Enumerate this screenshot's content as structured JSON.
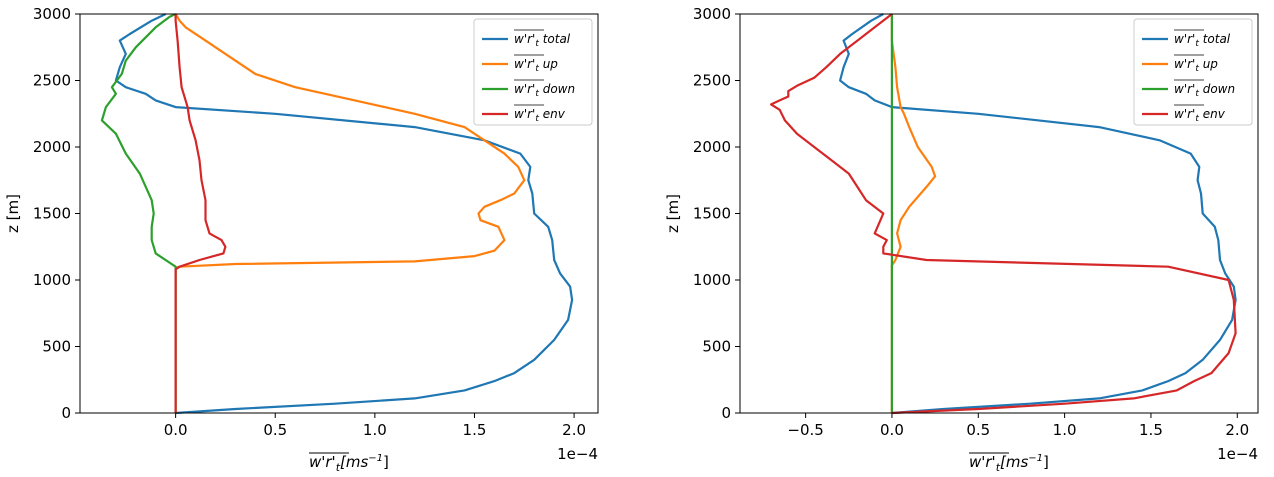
{
  "chart_data": [
    {
      "type": "line",
      "xlabel": "w'r'_t[ms^-1]",
      "ylabel": "z [m]",
      "offset_text": "1e−4",
      "xlim": [
        -0.48,
        2.12
      ],
      "ylim": [
        0,
        3000
      ],
      "xticks": [
        0.0,
        0.5,
        1.0,
        1.5,
        2.0
      ],
      "xtick_labels": [
        "0.0",
        "0.5",
        "1.0",
        "1.5",
        "2.0"
      ],
      "yticks": [
        0,
        500,
        1000,
        1500,
        2000,
        2500,
        3000
      ],
      "ytick_labels": [
        "0",
        "500",
        "1000",
        "1500",
        "2000",
        "2500",
        "3000"
      ],
      "legend_position": "upper right",
      "series": [
        {
          "name": "total",
          "color": "#1f77b4",
          "x": [
            0.0,
            0.3,
            0.8,
            1.2,
            1.45,
            1.6,
            1.7,
            1.8,
            1.9,
            1.97,
            1.99,
            1.98,
            1.93,
            1.9,
            1.89,
            1.87,
            1.8,
            1.79,
            1.77,
            1.78,
            1.73,
            1.55,
            1.2,
            0.5,
            0.0,
            -0.1,
            -0.15,
            -0.25,
            -0.3,
            -0.28,
            -0.25,
            -0.28,
            -0.23,
            -0.12,
            -0.05
          ],
          "y": [
            0,
            30,
            70,
            110,
            170,
            240,
            300,
            400,
            550,
            700,
            850,
            950,
            1050,
            1150,
            1300,
            1400,
            1500,
            1650,
            1750,
            1850,
            1950,
            2050,
            2150,
            2250,
            2300,
            2350,
            2400,
            2450,
            2500,
            2600,
            2700,
            2800,
            2850,
            2950,
            3000
          ]
        },
        {
          "name": "up",
          "color": "#ff7f0e",
          "x": [
            0.0,
            0.0,
            0.02,
            0.3,
            1.2,
            1.5,
            1.6,
            1.65,
            1.62,
            1.53,
            1.52,
            1.55,
            1.63,
            1.7,
            1.75,
            1.72,
            1.65,
            1.55,
            1.45,
            1.2,
            0.9,
            0.6,
            0.4,
            0.25,
            0.15,
            0.05,
            0.02,
            0.0
          ],
          "y": [
            0,
            1090,
            1100,
            1120,
            1140,
            1180,
            1220,
            1300,
            1400,
            1450,
            1500,
            1550,
            1600,
            1650,
            1750,
            1850,
            1950,
            2050,
            2150,
            2250,
            2350,
            2450,
            2550,
            2700,
            2800,
            2900,
            2950,
            3000
          ]
        },
        {
          "name": "down",
          "color": "#2ca02c",
          "x": [
            0.0,
            0.0,
            -0.02,
            -0.1,
            -0.12,
            -0.12,
            -0.11,
            -0.12,
            -0.18,
            -0.25,
            -0.3,
            -0.37,
            -0.35,
            -0.3,
            -0.32,
            -0.27,
            -0.25,
            -0.2,
            -0.1,
            -0.03,
            0.0
          ],
          "y": [
            0,
            1100,
            1120,
            1200,
            1300,
            1400,
            1500,
            1600,
            1800,
            1950,
            2100,
            2200,
            2300,
            2400,
            2450,
            2550,
            2650,
            2750,
            2900,
            2980,
            3000
          ]
        },
        {
          "name": "env",
          "color": "#d62728",
          "x": [
            0.0,
            0.0,
            0.02,
            0.12,
            0.24,
            0.25,
            0.23,
            0.17,
            0.15,
            0.15,
            0.13,
            0.12,
            0.1,
            0.07,
            0.06,
            0.03,
            0.02,
            0.01,
            0.0,
            0.0
          ],
          "y": [
            0,
            1080,
            1100,
            1150,
            1200,
            1250,
            1300,
            1350,
            1450,
            1600,
            1750,
            1900,
            2050,
            2200,
            2300,
            2450,
            2600,
            2800,
            2950,
            3000
          ]
        }
      ]
    },
    {
      "type": "line",
      "xlabel": "w'r'_t[ms^-1]",
      "ylabel": "z [m]",
      "offset_text": "1e−4",
      "xlim": [
        -0.88,
        2.12
      ],
      "ylim": [
        0,
        3000
      ],
      "xticks": [
        -0.5,
        0.0,
        0.5,
        1.0,
        1.5,
        2.0
      ],
      "xtick_labels": [
        "−0.5",
        "0.0",
        "0.5",
        "1.0",
        "1.5",
        "2.0"
      ],
      "yticks": [
        0,
        500,
        1000,
        1500,
        2000,
        2500,
        3000
      ],
      "ytick_labels": [
        "0",
        "500",
        "1000",
        "1500",
        "2000",
        "2500",
        "3000"
      ],
      "legend_position": "upper right",
      "series": [
        {
          "name": "total",
          "color": "#1f77b4",
          "x": [
            0.0,
            0.3,
            0.8,
            1.2,
            1.45,
            1.6,
            1.7,
            1.8,
            1.9,
            1.97,
            1.99,
            1.98,
            1.93,
            1.9,
            1.89,
            1.87,
            1.8,
            1.79,
            1.77,
            1.78,
            1.73,
            1.55,
            1.2,
            0.5,
            0.0,
            -0.1,
            -0.15,
            -0.25,
            -0.3,
            -0.28,
            -0.25,
            -0.28,
            -0.23,
            -0.12,
            -0.05
          ],
          "y": [
            0,
            30,
            70,
            110,
            170,
            240,
            300,
            400,
            550,
            700,
            850,
            950,
            1050,
            1150,
            1300,
            1400,
            1500,
            1650,
            1750,
            1850,
            1950,
            2050,
            2150,
            2250,
            2300,
            2350,
            2400,
            2450,
            2500,
            2600,
            2700,
            2800,
            2850,
            2950,
            3000
          ]
        },
        {
          "name": "up",
          "color": "#ff7f0e",
          "x": [
            0.0,
            0.0,
            0.02,
            0.05,
            0.03,
            0.05,
            0.1,
            0.2,
            0.25,
            0.23,
            0.15,
            0.1,
            0.07,
            0.05,
            0.03,
            0.02,
            0.0,
            0.0
          ],
          "y": [
            0,
            1110,
            1150,
            1250,
            1350,
            1450,
            1550,
            1700,
            1780,
            1850,
            2000,
            2150,
            2250,
            2300,
            2450,
            2600,
            2800,
            3000
          ]
        },
        {
          "name": "down",
          "color": "#2ca02c",
          "x": [
            0.0,
            0.0,
            0.0,
            0.0,
            0.0,
            0.0,
            0.0
          ],
          "y": [
            0,
            500,
            1000,
            1500,
            2000,
            2500,
            3000
          ]
        },
        {
          "name": "env",
          "color": "#d62728",
          "x": [
            0.0,
            0.5,
            1.0,
            1.4,
            1.65,
            1.75,
            1.85,
            1.95,
            1.99,
            1.98,
            1.95,
            1.6,
            0.2,
            -0.05,
            -0.05,
            -0.03,
            -0.1,
            -0.05,
            -0.15,
            -0.2,
            -0.25,
            -0.35,
            -0.45,
            -0.55,
            -0.62,
            -0.65,
            -0.7,
            -0.65,
            -0.6,
            -0.6,
            -0.55,
            -0.45,
            -0.38,
            -0.3,
            -0.2,
            -0.1,
            0.0
          ],
          "y": [
            0,
            30,
            70,
            110,
            170,
            240,
            300,
            450,
            600,
            850,
            1000,
            1100,
            1150,
            1200,
            1250,
            1300,
            1350,
            1500,
            1600,
            1700,
            1800,
            1900,
            2000,
            2100,
            2200,
            2280,
            2320,
            2350,
            2380,
            2420,
            2460,
            2520,
            2600,
            2700,
            2800,
            2900,
            3000
          ]
        }
      ]
    }
  ]
}
